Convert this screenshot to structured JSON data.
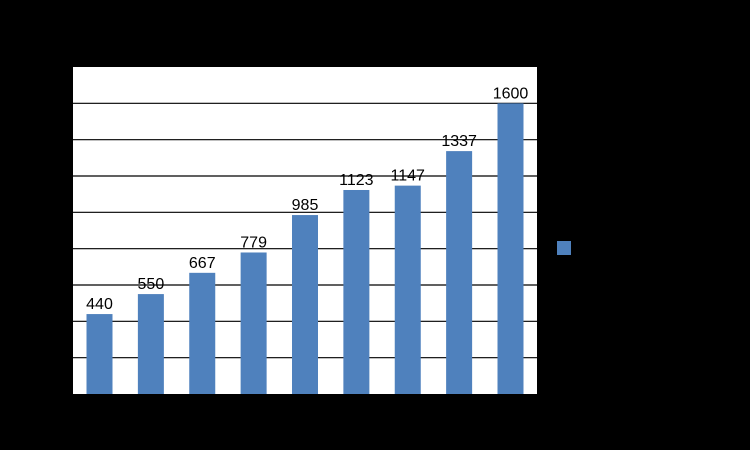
{
  "chart_data": {
    "type": "bar",
    "title": "",
    "xlabel": "",
    "ylabel": "",
    "categories": [
      "",
      "",
      "",
      "",
      "",
      "",
      "",
      "",
      ""
    ],
    "series": [
      {
        "values": [
          440,
          550,
          667,
          779,
          985,
          1123,
          1147,
          1337,
          1600
        ],
        "color": "#4F81BD"
      }
    ],
    "ylim": [
      0,
      1800
    ],
    "gridlines": true,
    "legend_position": "right",
    "show_data_labels": true
  },
  "colors": {
    "page_background": "#000000",
    "plot_background": "#FFFFFF",
    "gridline": "#000000",
    "bar": "#4F81BD"
  }
}
